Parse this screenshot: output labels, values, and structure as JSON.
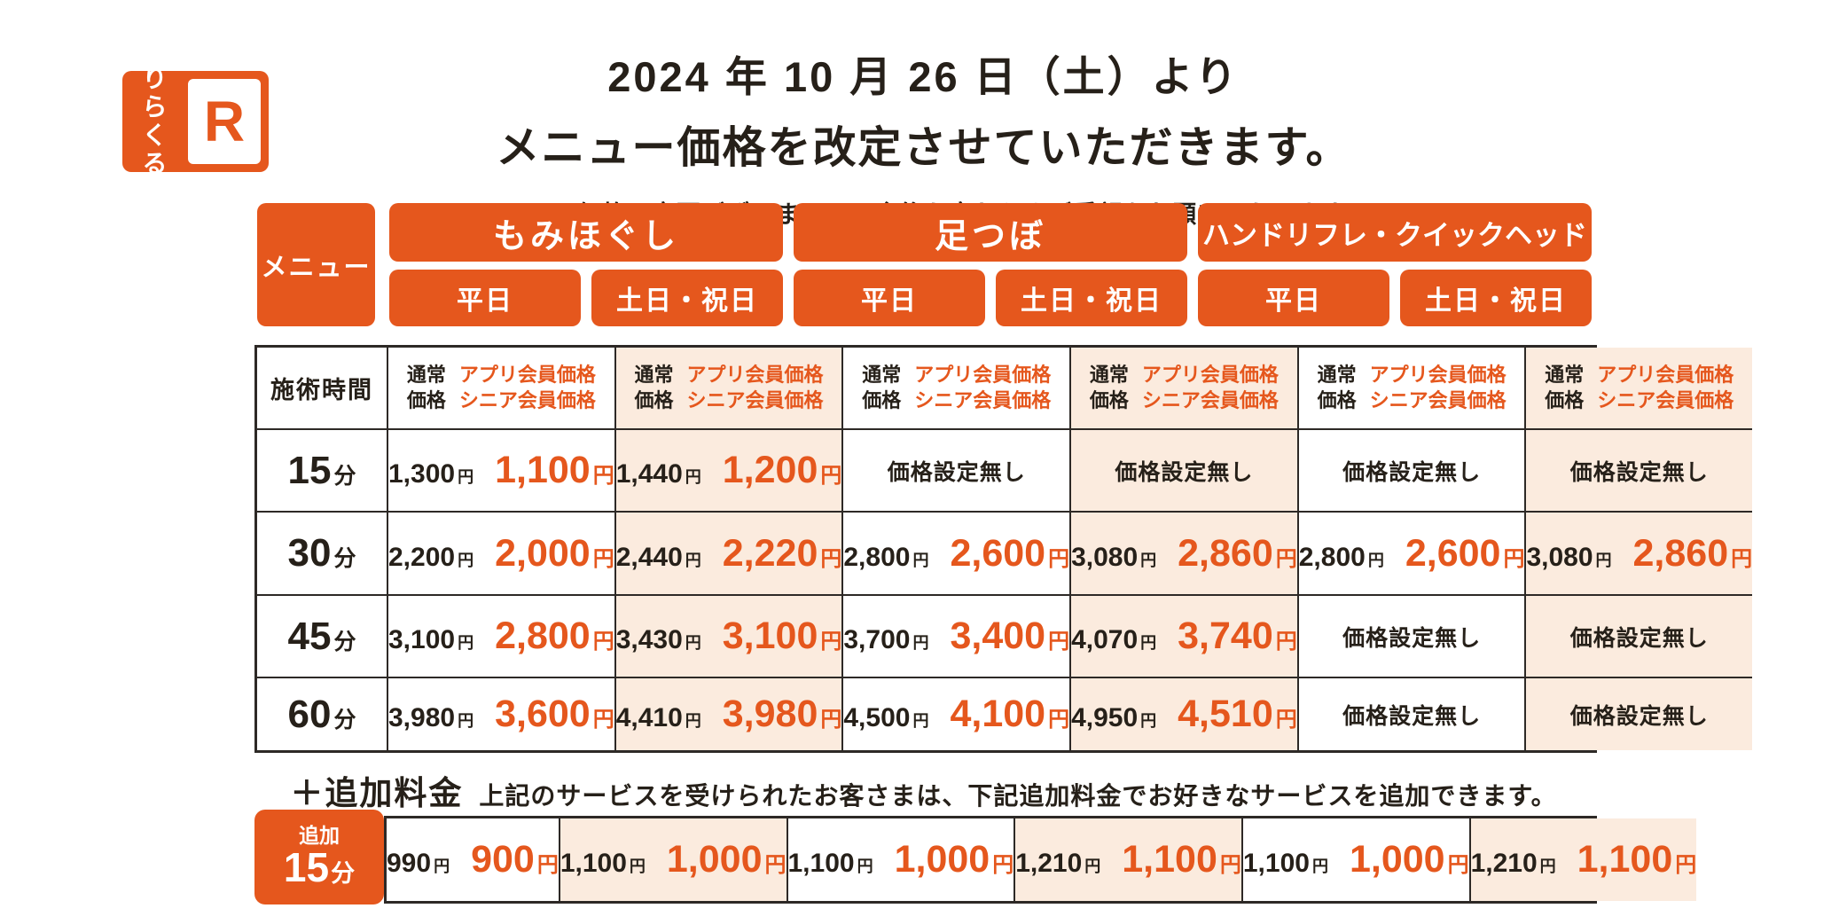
{
  "colors": {
    "brand_orange": "#e5571d",
    "weekend_bg": "#fbebde",
    "line": "#2d2926",
    "text": "#262019"
  },
  "logo": {
    "text_line1": "りら",
    "text_line2": "くる",
    "mark": "R"
  },
  "header": {
    "title_line1": "2024 年 10 月 26 日（土）より",
    "title_line2": "メニュー価格を改定させていただきます。",
    "note": "※平日の価格は変更ございません。今後も変わらぬご愛顧をお願いいたします。"
  },
  "table": {
    "menu_label": "メニュー",
    "categories": [
      {
        "label": "もみほぐし"
      },
      {
        "label": "足つぼ"
      },
      {
        "label": "ハンドリフレ・クイックヘッド"
      }
    ],
    "day_headers": [
      "平日",
      "土日・祝日",
      "平日",
      "土日・祝日",
      "平日",
      "土日・祝日"
    ],
    "time_header": "施術時間",
    "price_header": {
      "normal_l1": "通常",
      "normal_l2": "価格",
      "member_l1": "アプリ会員価格",
      "member_l2": "シニア会員価格"
    },
    "no_price_text": "価格設定無し",
    "yen": "円",
    "minute_unit": "分",
    "rows": [
      {
        "time": "15",
        "cells": [
          {
            "normal": "1,300",
            "member": "1,100"
          },
          {
            "normal": "1,440",
            "member": "1,200"
          },
          {
            "none": true
          },
          {
            "none": true
          },
          {
            "none": true
          },
          {
            "none": true
          }
        ]
      },
      {
        "time": "30",
        "cells": [
          {
            "normal": "2,200",
            "member": "2,000"
          },
          {
            "normal": "2,440",
            "member": "2,220"
          },
          {
            "normal": "2,800",
            "member": "2,600"
          },
          {
            "normal": "3,080",
            "member": "2,860"
          },
          {
            "normal": "2,800",
            "member": "2,600"
          },
          {
            "normal": "3,080",
            "member": "2,860"
          }
        ]
      },
      {
        "time": "45",
        "cells": [
          {
            "normal": "3,100",
            "member": "2,800"
          },
          {
            "normal": "3,430",
            "member": "3,100"
          },
          {
            "normal": "3,700",
            "member": "3,400"
          },
          {
            "normal": "4,070",
            "member": "3,740"
          },
          {
            "none": true
          },
          {
            "none": true
          }
        ]
      },
      {
        "time": "60",
        "cells": [
          {
            "normal": "3,980",
            "member": "3,600"
          },
          {
            "normal": "4,410",
            "member": "3,980"
          },
          {
            "normal": "4,500",
            "member": "4,100"
          },
          {
            "normal": "4,950",
            "member": "4,510"
          },
          {
            "none": true
          },
          {
            "none": true
          }
        ]
      }
    ]
  },
  "addon": {
    "heading": "＋追加料金",
    "description": "上記のサービスを受けられたお客さまは、下記追加料金でお好きなサービスを追加できます。",
    "badge_small": "追加",
    "badge_time": "15",
    "badge_unit": "分",
    "cells": [
      {
        "normal": "990",
        "member": "900"
      },
      {
        "normal": "1,100",
        "member": "1,000"
      },
      {
        "normal": "1,100",
        "member": "1,000"
      },
      {
        "normal": "1,210",
        "member": "1,100"
      },
      {
        "normal": "1,100",
        "member": "1,000"
      },
      {
        "normal": "1,210",
        "member": "1,100"
      }
    ]
  }
}
